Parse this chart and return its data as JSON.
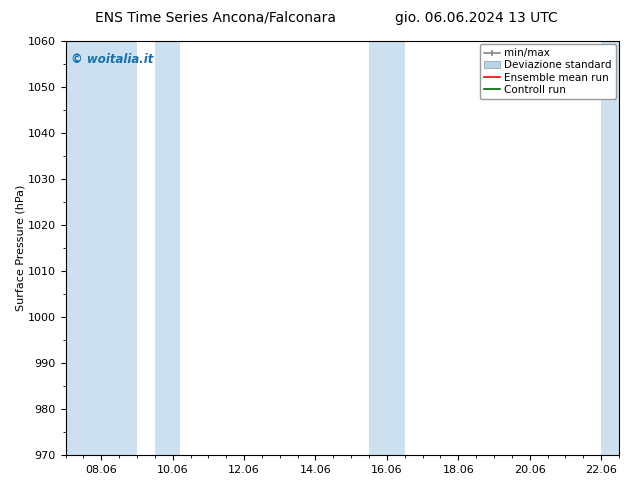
{
  "title_left": "ENS Time Series Ancona/Falconara",
  "title_right": "gio. 06.06.2024 13 UTC",
  "ylabel": "Surface Pressure (hPa)",
  "ylim": [
    970,
    1060
  ],
  "yticks": [
    970,
    980,
    990,
    1000,
    1010,
    1020,
    1030,
    1040,
    1050,
    1060
  ],
  "xlim_days": [
    0,
    15.5
  ],
  "xtick_labels": [
    "08.06",
    "10.06",
    "12.06",
    "14.06",
    "16.06",
    "18.06",
    "20.06",
    "22.06"
  ],
  "xtick_positions_days": [
    1,
    3,
    5,
    7,
    9,
    11,
    13,
    15
  ],
  "shaded_bands": [
    {
      "start_day": 0.0,
      "end_day": 2.0
    },
    {
      "start_day": 2.5,
      "end_day": 3.2
    },
    {
      "start_day": 8.5,
      "end_day": 9.5
    },
    {
      "start_day": 15.0,
      "end_day": 15.5
    }
  ],
  "shade_color": "#cce0f0",
  "watermark": "© woitalia.it",
  "watermark_color": "#1a6faf",
  "legend_labels": [
    "min/max",
    "Deviazione standard",
    "Ensemble mean run",
    "Controll run"
  ],
  "bg_color": "#ffffff",
  "plot_bg_color": "#ffffff",
  "title_fontsize": 10,
  "tick_fontsize": 8,
  "ylabel_fontsize": 8,
  "legend_fontsize": 7.5
}
